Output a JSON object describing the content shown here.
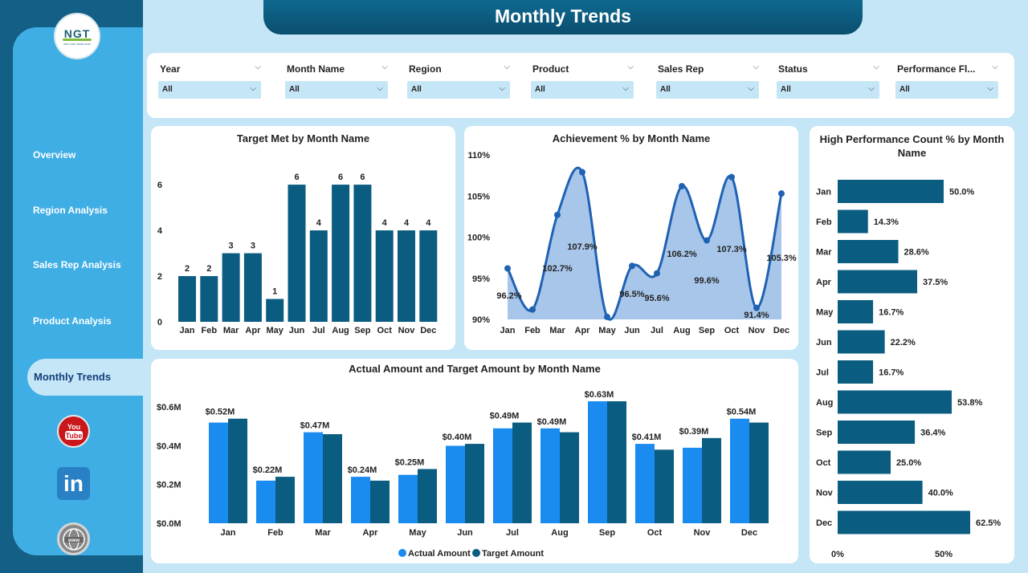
{
  "app": {
    "title": "Monthly Trends",
    "logo_text": "NGT",
    "logo_subtext": "NEXT GEN TEMPLATES"
  },
  "nav": {
    "items": [
      "Overview",
      "Region Analysis",
      "Sales Rep Analysis",
      "Product Analysis"
    ],
    "active": "Monthly Trends"
  },
  "social": [
    {
      "icon": "youtube-icon",
      "label": "You Tube"
    },
    {
      "icon": "linkedin-icon",
      "label": "in"
    },
    {
      "icon": "globe-icon",
      "label": "www"
    }
  ],
  "filters": [
    {
      "label": "Year",
      "value": "All"
    },
    {
      "label": "Month Name",
      "value": "All"
    },
    {
      "label": "Region",
      "value": "All"
    },
    {
      "label": "Product",
      "value": "All"
    },
    {
      "label": "Sales Rep",
      "value": "All"
    },
    {
      "label": "Status",
      "value": "All"
    },
    {
      "label": "Performance Fl...",
      "value": "All"
    }
  ],
  "colors": {
    "dark_bar": "#0a5c80",
    "light_bar": "#1a8cf0",
    "area_fill": "#a7c6ea",
    "area_line": "#1f62b3",
    "sidebar": "#3faee4",
    "background": "#c5e6f6"
  },
  "chart_data": [
    {
      "type": "bar",
      "title": "Target Met by Month Name",
      "categories": [
        "Jan",
        "Feb",
        "Mar",
        "Apr",
        "May",
        "Jun",
        "Jul",
        "Aug",
        "Sep",
        "Oct",
        "Nov",
        "Dec"
      ],
      "values": [
        2,
        2,
        3,
        3,
        1,
        6,
        4,
        6,
        6,
        4,
        4,
        4
      ],
      "data_labels": [
        "2",
        "2",
        "3",
        "3",
        "1",
        "6",
        "4",
        "6",
        "6",
        "4",
        "4",
        "4"
      ],
      "y_ticks": [
        "0",
        "2",
        "4",
        "6"
      ],
      "ylim": [
        0,
        6.6
      ]
    },
    {
      "type": "area",
      "title": "Achievement % by Month Name",
      "categories": [
        "Jan",
        "Feb",
        "Mar",
        "Apr",
        "May",
        "Jun",
        "Jul",
        "Aug",
        "Sep",
        "Oct",
        "Nov",
        "Dec"
      ],
      "values": [
        96.2,
        91.2,
        102.7,
        107.9,
        90.3,
        96.5,
        95.6,
        106.2,
        99.6,
        107.3,
        91.4,
        105.3
      ],
      "data_labels": [
        "96.2%",
        "",
        "102.7%",
        "107.9%",
        "",
        "96.5%",
        "95.6%",
        "106.2%",
        "99.6%",
        "107.3%",
        "91.4%",
        "105.3%"
      ],
      "y_ticks": [
        "90%",
        "95%",
        "100%",
        "105%",
        "110%"
      ],
      "ylim": [
        90,
        110
      ]
    },
    {
      "type": "bar",
      "orientation": "horizontal",
      "title": "High Performance Count % by Month Name",
      "categories": [
        "Jan",
        "Feb",
        "Mar",
        "Apr",
        "May",
        "Jun",
        "Jul",
        "Aug",
        "Sep",
        "Oct",
        "Nov",
        "Dec"
      ],
      "values": [
        50.0,
        14.3,
        28.6,
        37.5,
        16.7,
        22.2,
        16.7,
        53.8,
        36.4,
        25.0,
        40.0,
        62.5
      ],
      "data_labels": [
        "50.0%",
        "14.3%",
        "28.6%",
        "37.5%",
        "16.7%",
        "22.2%",
        "16.7%",
        "53.8%",
        "36.4%",
        "25.0%",
        "40.0%",
        "62.5%"
      ],
      "x_ticks": [
        "0%",
        "50%"
      ],
      "xlim": [
        0,
        62.5
      ]
    },
    {
      "type": "bar",
      "title": "Actual Amount and Target Amount by Month Name",
      "categories": [
        "Jan",
        "Feb",
        "Mar",
        "Apr",
        "May",
        "Jun",
        "Jul",
        "Aug",
        "Sep",
        "Oct",
        "Nov",
        "Dec"
      ],
      "series": [
        {
          "name": "Actual Amount",
          "values": [
            0.52,
            0.22,
            0.47,
            0.24,
            0.25,
            0.4,
            0.49,
            0.49,
            0.63,
            0.41,
            0.39,
            0.54
          ]
        },
        {
          "name": "Target Amount",
          "values": [
            0.54,
            0.24,
            0.46,
            0.22,
            0.28,
            0.41,
            0.52,
            0.47,
            0.63,
            0.38,
            0.44,
            0.52
          ]
        }
      ],
      "data_labels": [
        "$0.52M",
        "$0.22M",
        "$0.47M",
        "$0.24M",
        "$0.25M",
        "$0.40M",
        "$0.49M",
        "$0.49M",
        "$0.63M",
        "$0.41M",
        "$0.39M",
        "$0.54M"
      ],
      "y_ticks": [
        "$0.0M",
        "$0.2M",
        "$0.4M",
        "$0.6M"
      ],
      "ylim": [
        0,
        0.63
      ]
    }
  ]
}
